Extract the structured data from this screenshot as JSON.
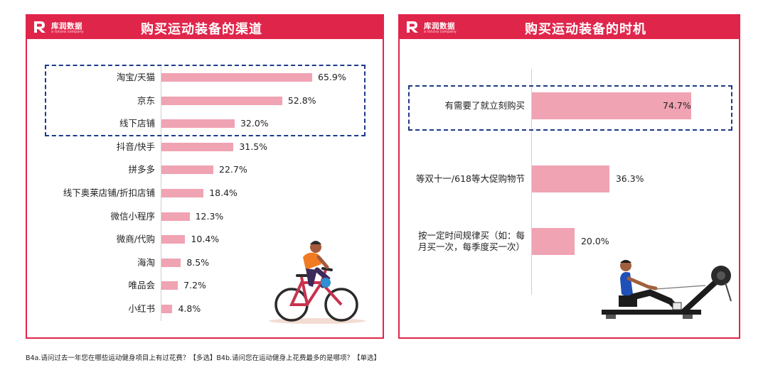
{
  "logo": {
    "cn": "库润数据",
    "en": "a totuna company"
  },
  "footnote": "B4a.请问过去一年您在哪些运动健身项目上有过花费？【多选】B4b.请问您在运动健身上花费最多的是哪项？【单选】",
  "colors": {
    "brand": "#e0254a",
    "bar": "#f0a3b3",
    "highlight": "#1d3a8a"
  },
  "icons": [
    "cyclist-illustration",
    "rowing-machine-illustration"
  ],
  "chart_data": [
    {
      "type": "bar",
      "orientation": "horizontal",
      "title": "购买运动装备的渠道",
      "categories": [
        "淘宝/天猫",
        "京东",
        "线下店铺",
        "抖音/快手",
        "拼多多",
        "线下奥莱店铺/折扣店铺",
        "微信小程序",
        "微商/代购",
        "海淘",
        "唯品会",
        "小红书"
      ],
      "values": [
        65.9,
        52.8,
        32.0,
        31.5,
        22.7,
        18.4,
        12.3,
        10.4,
        8.5,
        7.2,
        4.8
      ],
      "labels": [
        "65.9%",
        "52.8%",
        "32.0%",
        "31.5%",
        "22.7%",
        "18.4%",
        "12.3%",
        "10.4%",
        "8.5%",
        "7.2%",
        "4.8%"
      ],
      "highlighted": [
        "淘宝/天猫",
        "京东",
        "线下店铺"
      ],
      "xlim": [
        0,
        100
      ]
    },
    {
      "type": "bar",
      "orientation": "horizontal",
      "title": "购买运动装备的时机",
      "categories": [
        "有需要了就立刻购买",
        "等双十一/618等大促购物节",
        "按一定时间规律买（如：每月买一次，每季度买一次）"
      ],
      "category_lines": [
        [
          "有需要了就立刻购买"
        ],
        [
          "等双十一/618等大促购物节"
        ],
        [
          "按一定时间规律买（如：每",
          "月买一次，每季度买一次）"
        ]
      ],
      "values": [
        74.7,
        36.3,
        20.0
      ],
      "labels": [
        "74.7%",
        "36.3%",
        "20.0%"
      ],
      "highlighted": [
        "有需要了就立刻购买"
      ],
      "xlim": [
        0,
        100
      ]
    }
  ]
}
